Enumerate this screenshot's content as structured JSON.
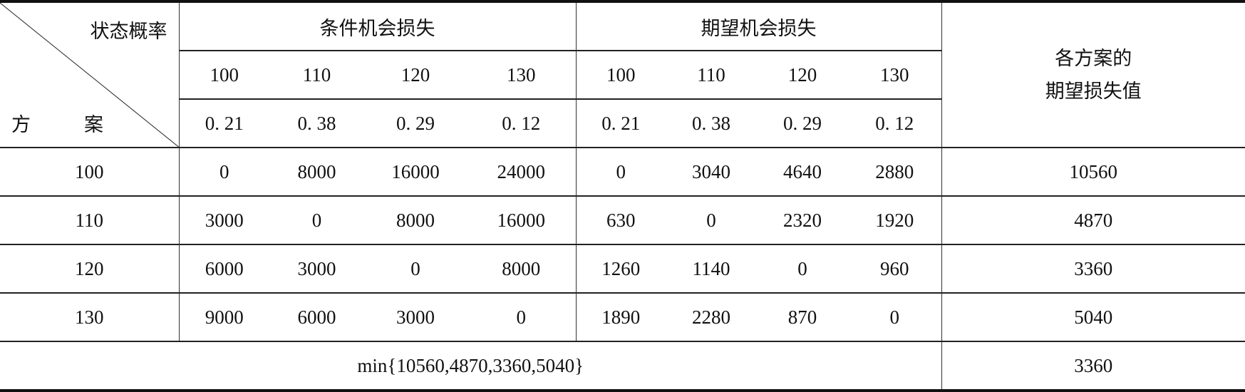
{
  "header": {
    "corner_top": "状态概率",
    "corner_bottom_left": "方",
    "corner_bottom_right": "案",
    "group_conditional": "条件机会损失",
    "group_expected": "期望机会损失",
    "result_line1": "各方案的",
    "result_line2": "期望损失值",
    "states": [
      "100",
      "110",
      "120",
      "130"
    ],
    "probabilities": [
      "0. 21",
      "0. 38",
      "0. 29",
      "0. 12"
    ]
  },
  "rows": [
    {
      "plan": "100",
      "conditional": [
        "0",
        "8000",
        "16000",
        "24000"
      ],
      "expected": [
        "0",
        "3040",
        "4640",
        "2880"
      ],
      "total": "10560"
    },
    {
      "plan": "110",
      "conditional": [
        "3000",
        "0",
        "8000",
        "16000"
      ],
      "expected": [
        "630",
        "0",
        "2320",
        "1920"
      ],
      "total": "4870"
    },
    {
      "plan": "120",
      "conditional": [
        "6000",
        "3000",
        "0",
        "8000"
      ],
      "expected": [
        "1260",
        "1140",
        "0",
        "960"
      ],
      "total": "3360"
    },
    {
      "plan": "130",
      "conditional": [
        "9000",
        "6000",
        "3000",
        "0"
      ],
      "expected": [
        "1890",
        "2280",
        "870",
        "0"
      ],
      "total": "5040"
    }
  ],
  "footer": {
    "formula": "min{10560,4870,3360,5040}",
    "value": "3360"
  }
}
